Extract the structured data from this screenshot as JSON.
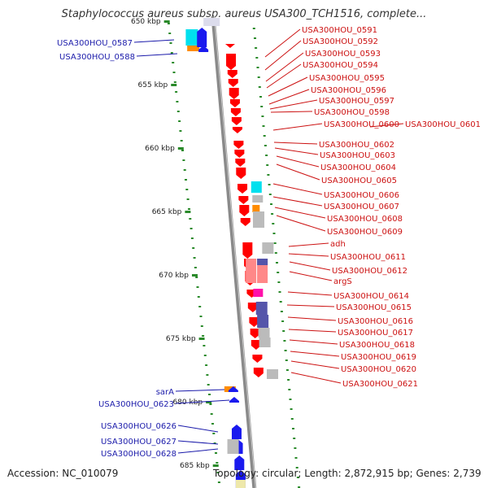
{
  "title": "Staphylococcus aureus subsp. aureus USA300_TCH1516, complete...",
  "footer": {
    "accession": "Accession: NC_010079",
    "topology": "Topology: circular; Length: 2,872,915 bp; Genes: 2,739"
  },
  "colors": {
    "backbone": "#8a8a8a",
    "forward_label": "#1a1aaa",
    "reverse_label": "#cc1111",
    "tick_green": "#2a8a2a",
    "gene_red": "#ff0000",
    "gene_blue": "#1a1aee",
    "gene_orange": "#ff8c00",
    "gene_cyan": "#00e0ee",
    "gene_gray": "#bbbbbb",
    "gene_pink": "#ff8888",
    "gene_purple": "#5555aa",
    "gene_magenta": "#ff11aa"
  },
  "scale": {
    "unit": "kbp",
    "ticks": [
      {
        "label": "650 kbp",
        "kbp": 650
      },
      {
        "label": "655 kbp",
        "kbp": 655
      },
      {
        "label": "660 kbp",
        "kbp": 660
      },
      {
        "label": "665 kbp",
        "kbp": 665
      },
      {
        "label": "670 kbp",
        "kbp": 670
      },
      {
        "label": "675 kbp",
        "kbp": 675
      },
      {
        "label": "680 kbp",
        "kbp": 680
      },
      {
        "label": "685 kbp",
        "kbp": 685
      }
    ]
  },
  "left_labels": [
    {
      "text": "USA300HOU_0587"
    },
    {
      "text": "USA300HOU_0588"
    },
    {
      "text": "sarA"
    },
    {
      "text": "USA300HOU_0623"
    },
    {
      "text": "USA300HOU_0626"
    },
    {
      "text": "USA300HOU_0627"
    },
    {
      "text": "USA300HOU_0628"
    }
  ],
  "right_labels": [
    {
      "text": "USA300HOU_0591"
    },
    {
      "text": "USA300HOU_0592"
    },
    {
      "text": "USA300HOU_0593"
    },
    {
      "text": "USA300HOU_0594"
    },
    {
      "text": "USA300HOU_0595"
    },
    {
      "text": "USA300HOU_0596"
    },
    {
      "text": "USA300HOU_0597"
    },
    {
      "text": "USA300HOU_0598"
    },
    {
      "text": "USA300HOU_0600"
    },
    {
      "text": "USA300HOU_0601"
    },
    {
      "text": "USA300HOU_0602"
    },
    {
      "text": "USA300HOU_0603"
    },
    {
      "text": "USA300HOU_0604"
    },
    {
      "text": "USA300HOU_0605"
    },
    {
      "text": "USA300HOU_0606"
    },
    {
      "text": "USA300HOU_0607"
    },
    {
      "text": "USA300HOU_0608"
    },
    {
      "text": "USA300HOU_0609"
    },
    {
      "text": "adh"
    },
    {
      "text": "USA300HOU_0611"
    },
    {
      "text": "USA300HOU_0612"
    },
    {
      "text": "argS"
    },
    {
      "text": "USA300HOU_0614"
    },
    {
      "text": "USA300HOU_0615"
    },
    {
      "text": "USA300HOU_0616"
    },
    {
      "text": "USA300HOU_0617"
    },
    {
      "text": "USA300HOU_0618"
    },
    {
      "text": "USA300HOU_0619"
    },
    {
      "text": "USA300HOU_0620"
    },
    {
      "text": "USA300HOU_0621"
    }
  ]
}
